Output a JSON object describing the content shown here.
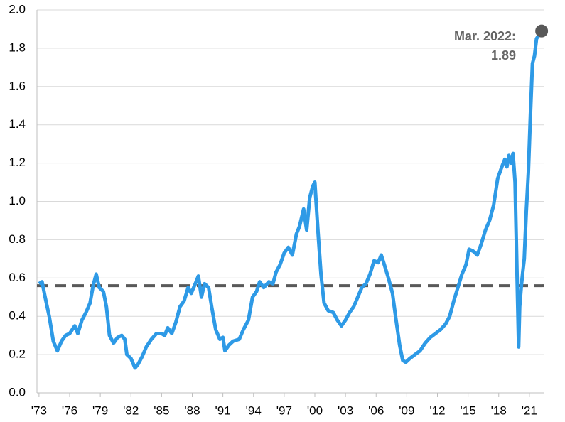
{
  "chart_data": {
    "type": "line",
    "annotation": "Mar. 2022:",
    "xlim": [
      1972.8,
      2022.4
    ],
    "ylim": [
      0,
      2
    ],
    "yticks": [
      {
        "value": 0,
        "label": "0.0"
      },
      0.2,
      0.4,
      0.6,
      0.8,
      {
        "value": 1,
        "label": "1.0"
      },
      1.2,
      1.4,
      1.6,
      1.8,
      {
        "value": 2,
        "label": "2.0"
      }
    ],
    "xticks": [
      {
        "value": 1973,
        "label": "'73"
      },
      {
        "value": 1976,
        "label": "'76"
      },
      {
        "value": 1979,
        "label": "'79"
      },
      {
        "value": 1982,
        "label": "'82"
      },
      {
        "value": 1985,
        "label": "'85"
      },
      {
        "value": 1988,
        "label": "'88"
      },
      {
        "value": 1991,
        "label": "'91"
      },
      {
        "value": 1994,
        "label": "'94"
      },
      {
        "value": 1997,
        "label": "'97"
      },
      {
        "value": 2000,
        "label": "'00"
      },
      {
        "value": 2003,
        "label": "'03"
      },
      {
        "value": 2006,
        "label": "'06"
      },
      {
        "value": 2009,
        "label": "'09"
      },
      {
        "value": 2012,
        "label": "'12"
      },
      {
        "value": 2015,
        "label": "'15"
      },
      {
        "value": 2018,
        "label": "'18"
      },
      {
        "value": 2021,
        "label": "'21"
      }
    ],
    "grid": true,
    "reference_line": {
      "value": 0.56,
      "color": "#595959"
    },
    "marker_color": "#595959",
    "series": [
      {
        "color": "#2e9ae6",
        "x": [
          1973.0,
          1973.3,
          1973.6,
          1974.0,
          1974.4,
          1974.8,
          1975.2,
          1975.6,
          1976.0,
          1976.5,
          1976.8,
          1977.2,
          1977.6,
          1978.0,
          1978.3,
          1978.6,
          1978.9,
          1979.3,
          1979.6,
          1979.9,
          1980.3,
          1980.7,
          1981.1,
          1981.4,
          1981.6,
          1982.0,
          1982.4,
          1982.7,
          1983.1,
          1983.5,
          1984.0,
          1984.5,
          1985.0,
          1985.3,
          1985.6,
          1986.0,
          1986.4,
          1986.8,
          1987.2,
          1987.6,
          1987.9,
          1988.3,
          1988.6,
          1988.9,
          1989.2,
          1989.6,
          1989.9,
          1990.3,
          1990.7,
          1991.0,
          1991.2,
          1991.6,
          1992.0,
          1992.6,
          1993.0,
          1993.5,
          1993.9,
          1994.3,
          1994.6,
          1995.0,
          1995.5,
          1995.9,
          1996.2,
          1996.6,
          1997.0,
          1997.4,
          1997.8,
          1998.2,
          1998.5,
          1998.9,
          1999.2,
          1999.5,
          1999.8,
          2000.0,
          2000.3,
          2000.6,
          2000.9,
          2001.3,
          2001.8,
          2002.2,
          2002.6,
          2003.0,
          2003.4,
          2003.8,
          2004.2,
          2004.6,
          2005.0,
          2005.4,
          2005.8,
          2006.2,
          2006.5,
          2006.8,
          2007.2,
          2007.6,
          2007.9,
          2008.3,
          2008.6,
          2008.9,
          2009.3,
          2009.8,
          2010.3,
          2010.8,
          2011.3,
          2011.8,
          2012.3,
          2012.8,
          2013.2,
          2013.6,
          2014.0,
          2014.4,
          2014.8,
          2015.1,
          2015.5,
          2015.9,
          2016.3,
          2016.7,
          2017.1,
          2017.5,
          2017.9,
          2018.3,
          2018.6,
          2018.8,
          2019.0,
          2019.2,
          2019.4,
          2019.6,
          2019.8,
          2019.95,
          2020.05,
          2020.2,
          2020.35,
          2020.5,
          2020.7,
          2020.9,
          2021.1,
          2021.3,
          2021.5,
          2021.7,
          2022.2
        ],
        "values": [
          0.57,
          0.58,
          0.5,
          0.4,
          0.27,
          0.22,
          0.27,
          0.3,
          0.31,
          0.35,
          0.31,
          0.38,
          0.42,
          0.47,
          0.56,
          0.62,
          0.55,
          0.53,
          0.45,
          0.3,
          0.26,
          0.29,
          0.3,
          0.28,
          0.2,
          0.18,
          0.13,
          0.15,
          0.19,
          0.24,
          0.28,
          0.31,
          0.31,
          0.3,
          0.34,
          0.31,
          0.37,
          0.45,
          0.48,
          0.55,
          0.52,
          0.57,
          0.61,
          0.5,
          0.57,
          0.55,
          0.45,
          0.33,
          0.28,
          0.29,
          0.22,
          0.25,
          0.27,
          0.28,
          0.33,
          0.38,
          0.5,
          0.53,
          0.58,
          0.55,
          0.58,
          0.57,
          0.63,
          0.67,
          0.73,
          0.76,
          0.72,
          0.83,
          0.87,
          0.96,
          0.85,
          1.02,
          1.08,
          1.1,
          0.85,
          0.62,
          0.47,
          0.43,
          0.42,
          0.38,
          0.35,
          0.38,
          0.42,
          0.45,
          0.5,
          0.55,
          0.57,
          0.62,
          0.69,
          0.68,
          0.72,
          0.67,
          0.6,
          0.52,
          0.4,
          0.25,
          0.17,
          0.16,
          0.18,
          0.2,
          0.22,
          0.26,
          0.29,
          0.31,
          0.33,
          0.36,
          0.4,
          0.48,
          0.55,
          0.62,
          0.67,
          0.75,
          0.74,
          0.72,
          0.78,
          0.85,
          0.9,
          0.98,
          1.12,
          1.18,
          1.22,
          1.18,
          1.24,
          1.2,
          1.25,
          1.1,
          0.6,
          0.24,
          0.45,
          0.55,
          0.63,
          0.7,
          0.95,
          1.15,
          1.45,
          1.72,
          1.76,
          1.85,
          1.89
        ]
      }
    ]
  }
}
